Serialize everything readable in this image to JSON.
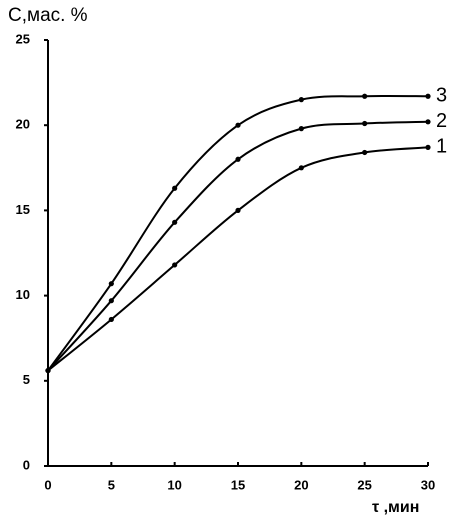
{
  "chart_data": {
    "type": "line",
    "y_label": "С,мас. %",
    "x_label": "τ ,мин",
    "x": [
      0,
      5,
      10,
      15,
      20,
      25,
      30
    ],
    "series": [
      {
        "name": "1",
        "color": "#000000",
        "values": [
          5.6,
          8.6,
          11.8,
          15.0,
          17.5,
          18.4,
          18.7
        ]
      },
      {
        "name": "2",
        "color": "#000000",
        "values": [
          5.6,
          9.7,
          14.3,
          18.0,
          19.8,
          20.1,
          20.2
        ]
      },
      {
        "name": "3",
        "color": "#000000",
        "values": [
          5.6,
          10.7,
          16.3,
          20.0,
          21.5,
          21.7,
          21.7
        ]
      }
    ],
    "xlim": [
      0,
      30
    ],
    "xticks": [
      0,
      5,
      10,
      15,
      20,
      25,
      30
    ],
    "ylim": [
      0,
      25
    ],
    "yticks": [
      0,
      5,
      10,
      15,
      20,
      25
    ],
    "grid": false
  }
}
